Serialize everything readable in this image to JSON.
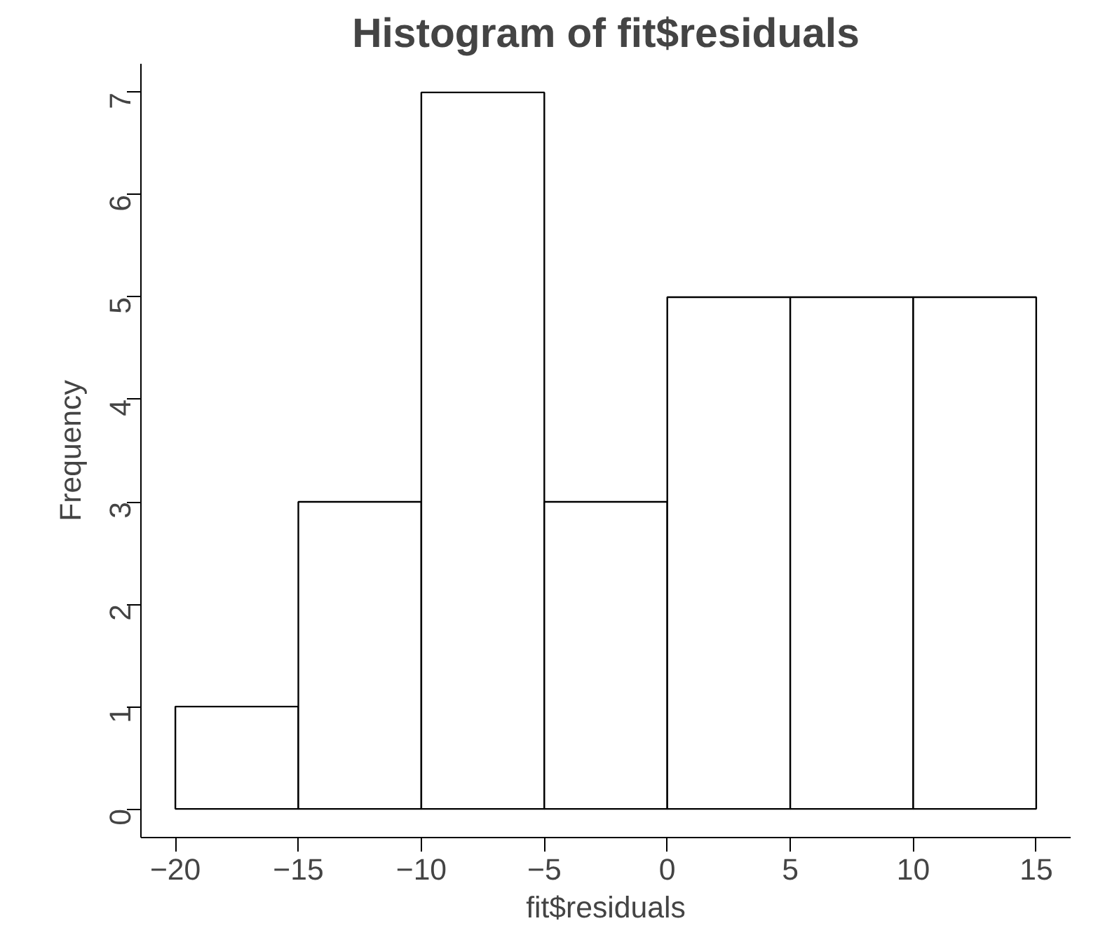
{
  "chart_data": {
    "type": "histogram",
    "title": "Histogram of fit$residuals",
    "xlabel": "fit$residuals",
    "ylabel": "Frequency",
    "bins": [
      -20,
      -15,
      -10,
      -5,
      0,
      5,
      10,
      15
    ],
    "values": [
      1,
      3,
      7,
      3,
      5,
      5,
      5
    ],
    "color": "#ffffff",
    "xlim": [
      -21.4,
      16.4
    ],
    "ylim": [
      -0.28,
      7.28
    ],
    "xticks": [
      -20,
      -15,
      -10,
      -5,
      0,
      5,
      10,
      15
    ],
    "yticks": [
      0,
      1,
      2,
      3,
      4,
      5,
      6,
      7
    ],
    "grid": false
  }
}
